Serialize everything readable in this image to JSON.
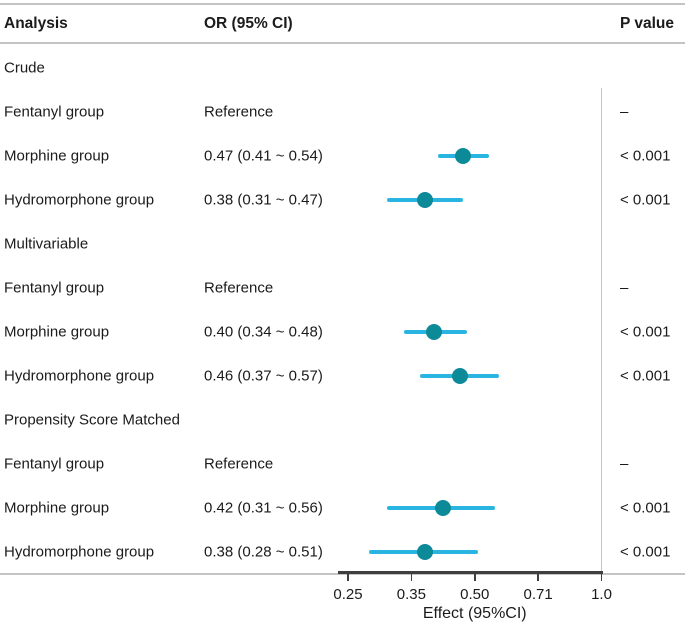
{
  "header": {
    "analysis": "Analysis",
    "or_ci": "OR (95% CI)",
    "p_value": "P value"
  },
  "chart_data": {
    "type": "scatter",
    "subtype": "forest-plot",
    "xlabel": "Effect (95%CI)",
    "xscale": "log",
    "x_axis": {
      "tick_labels": [
        "0.25",
        "0.35",
        "0.50",
        "0.71",
        "1.0"
      ],
      "tick_values": [
        0.25,
        0.3536,
        0.5,
        0.7071,
        1.0
      ],
      "min": 0.25,
      "max": 1.0
    },
    "reference_value": 1.0,
    "groups": [
      {
        "label": "Crude",
        "rows": [
          {
            "label": "Fentanyl group",
            "estimate_text": "Reference",
            "p_text": "–",
            "or": null,
            "ci_low": null,
            "ci_high": null
          },
          {
            "label": "Morphine group",
            "estimate_text": "0.47 (0.41 ~ 0.54)",
            "p_text": "< 0.001",
            "or": 0.47,
            "ci_low": 0.41,
            "ci_high": 0.54
          },
          {
            "label": "Hydromorphone group",
            "estimate_text": "0.38 (0.31 ~ 0.47)",
            "p_text": "< 0.001",
            "or": 0.38,
            "ci_low": 0.31,
            "ci_high": 0.47
          }
        ]
      },
      {
        "label": "Multivariable",
        "rows": [
          {
            "label": "Fentanyl group",
            "estimate_text": "Reference",
            "p_text": "–",
            "or": null,
            "ci_low": null,
            "ci_high": null
          },
          {
            "label": "Morphine group",
            "estimate_text": "0.40 (0.34 ~ 0.48)",
            "p_text": "< 0.001",
            "or": 0.4,
            "ci_low": 0.34,
            "ci_high": 0.48
          },
          {
            "label": "Hydromorphone group",
            "estimate_text": "0.46 (0.37 ~ 0.57)",
            "p_text": "< 0.001",
            "or": 0.46,
            "ci_low": 0.37,
            "ci_high": 0.57
          }
        ]
      },
      {
        "label": "Propensity Score Matched",
        "rows": [
          {
            "label": "Fentanyl group",
            "estimate_text": "Reference",
            "p_text": "–",
            "or": null,
            "ci_low": null,
            "ci_high": null
          },
          {
            "label": "Morphine group",
            "estimate_text": "0.42 (0.31 ~ 0.56)",
            "p_text": "< 0.001",
            "or": 0.42,
            "ci_low": 0.31,
            "ci_high": 0.56
          },
          {
            "label": "Hydromorphone group",
            "estimate_text": "0.38 (0.28 ~ 0.51)",
            "p_text": "< 0.001",
            "or": 0.38,
            "ci_low": 0.28,
            "ci_high": 0.51
          }
        ]
      }
    ]
  },
  "colors": {
    "point": "#0d8a97",
    "ci_line": "#29b5e2",
    "rule_gray": "#c4c4c4",
    "axis_dark": "#3f3f3f",
    "text": "#1b1b1b"
  }
}
